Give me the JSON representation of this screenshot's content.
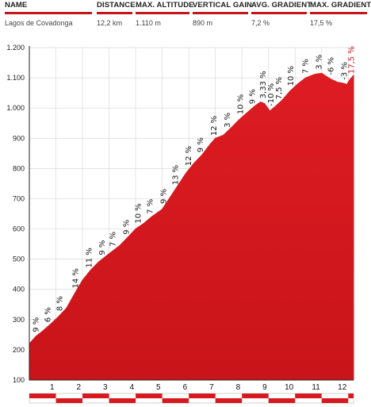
{
  "stats": {
    "columns": [
      {
        "key": "name",
        "header": "NAME",
        "value": "Lagos de Covadonga"
      },
      {
        "key": "distance",
        "header": "DISTANCE",
        "value": "12,2 km"
      },
      {
        "key": "max_altitude",
        "header": "MAX. ALTITUDE",
        "value": "1.110 m"
      },
      {
        "key": "vertical_gain",
        "header": "VERTICAL GAIN",
        "value": "890 m"
      },
      {
        "key": "avg_gradient",
        "header": "AVG. GRADIENT",
        "value": "7,2 %"
      },
      {
        "key": "max_gradient",
        "header": "MAX. GRADIENT",
        "value": "17,5 %"
      }
    ]
  },
  "chart_data": {
    "type": "area",
    "xlim": [
      0,
      12.2
    ],
    "ylim": [
      100,
      1200
    ],
    "y_ticks": [
      100,
      200,
      300,
      400,
      500,
      600,
      700,
      800,
      900,
      1000,
      1100,
      1200
    ],
    "y_tick_labels": [
      "100",
      "200",
      "300",
      "400",
      "500",
      "600",
      "700",
      "800",
      "900",
      "1.000",
      "1.100",
      "1.200"
    ],
    "x_ticks": [
      1,
      2,
      3,
      4,
      5,
      6,
      7,
      8,
      9,
      10,
      11,
      12
    ],
    "x_tick_labels": [
      "1",
      "2",
      "3",
      "4",
      "5",
      "6",
      "7",
      "8",
      "9",
      "10",
      "11",
      "12"
    ],
    "fill_color": "#d7191f",
    "profile": [
      [
        0,
        220
      ],
      [
        0.25,
        245
      ],
      [
        0.5,
        262
      ],
      [
        0.8,
        285
      ],
      [
        1.1,
        310
      ],
      [
        1.4,
        338
      ],
      [
        1.7,
        385
      ],
      [
        2.0,
        430
      ],
      [
        2.3,
        463
      ],
      [
        2.6,
        490
      ],
      [
        3.0,
        518
      ],
      [
        3.4,
        545
      ],
      [
        3.7,
        572
      ],
      [
        4.0,
        600
      ],
      [
        4.3,
        618
      ],
      [
        4.6,
        640
      ],
      [
        5.0,
        665
      ],
      [
        5.3,
        705
      ],
      [
        5.6,
        745
      ],
      [
        5.9,
        785
      ],
      [
        6.2,
        818
      ],
      [
        6.5,
        845
      ],
      [
        6.8,
        880
      ],
      [
        7.0,
        900
      ],
      [
        7.3,
        910
      ],
      [
        7.6,
        935
      ],
      [
        7.9,
        962
      ],
      [
        8.2,
        985
      ],
      [
        8.5,
        1008
      ],
      [
        8.7,
        1020
      ],
      [
        8.85,
        1015
      ],
      [
        9.05,
        990
      ],
      [
        9.25,
        1005
      ],
      [
        9.5,
        1025
      ],
      [
        9.8,
        1055
      ],
      [
        10.1,
        1080
      ],
      [
        10.4,
        1100
      ],
      [
        10.75,
        1112
      ],
      [
        11.0,
        1115
      ],
      [
        11.3,
        1098
      ],
      [
        11.6,
        1085
      ],
      [
        11.8,
        1082
      ],
      [
        11.95,
        1078
      ],
      [
        12.05,
        1093
      ],
      [
        12.2,
        1108
      ]
    ],
    "gradient_labels": [
      {
        "x": 0.25,
        "y": 245,
        "text": "9 %"
      },
      {
        "x": 0.7,
        "y": 278,
        "text": "6 %"
      },
      {
        "x": 1.15,
        "y": 315,
        "text": "8 %"
      },
      {
        "x": 1.75,
        "y": 390,
        "text": "14 %"
      },
      {
        "x": 2.25,
        "y": 458,
        "text": "11 %"
      },
      {
        "x": 2.75,
        "y": 500,
        "text": "9 %"
      },
      {
        "x": 3.15,
        "y": 528,
        "text": "7 %"
      },
      {
        "x": 3.65,
        "y": 568,
        "text": "9 %"
      },
      {
        "x": 4.1,
        "y": 605,
        "text": "10 %"
      },
      {
        "x": 4.55,
        "y": 636,
        "text": "7 %"
      },
      {
        "x": 5.05,
        "y": 670,
        "text": "9 %"
      },
      {
        "x": 5.5,
        "y": 732,
        "text": "13 %"
      },
      {
        "x": 6.0,
        "y": 795,
        "text": "12 %"
      },
      {
        "x": 6.45,
        "y": 840,
        "text": "9 %"
      },
      {
        "x": 6.95,
        "y": 895,
        "text": "12 %"
      },
      {
        "x": 7.45,
        "y": 922,
        "text": "3 %"
      },
      {
        "x": 7.95,
        "y": 966,
        "text": "10 %"
      },
      {
        "x": 8.4,
        "y": 1000,
        "text": "9 %"
      },
      {
        "x": 8.8,
        "y": 1018,
        "text": "3,33 %"
      },
      {
        "x": 9.1,
        "y": 993,
        "text": "-10 %"
      },
      {
        "x": 9.4,
        "y": 1015,
        "text": "7,5 %"
      },
      {
        "x": 9.85,
        "y": 1060,
        "text": "10 %"
      },
      {
        "x": 10.4,
        "y": 1100,
        "text": "7 %"
      },
      {
        "x": 10.9,
        "y": 1114,
        "text": "3 %"
      },
      {
        "x": 11.35,
        "y": 1096,
        "text": "-6 %"
      },
      {
        "x": 11.85,
        "y": 1080,
        "text": "-3 %"
      },
      {
        "x": 12.12,
        "y": 1100,
        "text": "17,5 %",
        "highlight": true
      }
    ]
  }
}
